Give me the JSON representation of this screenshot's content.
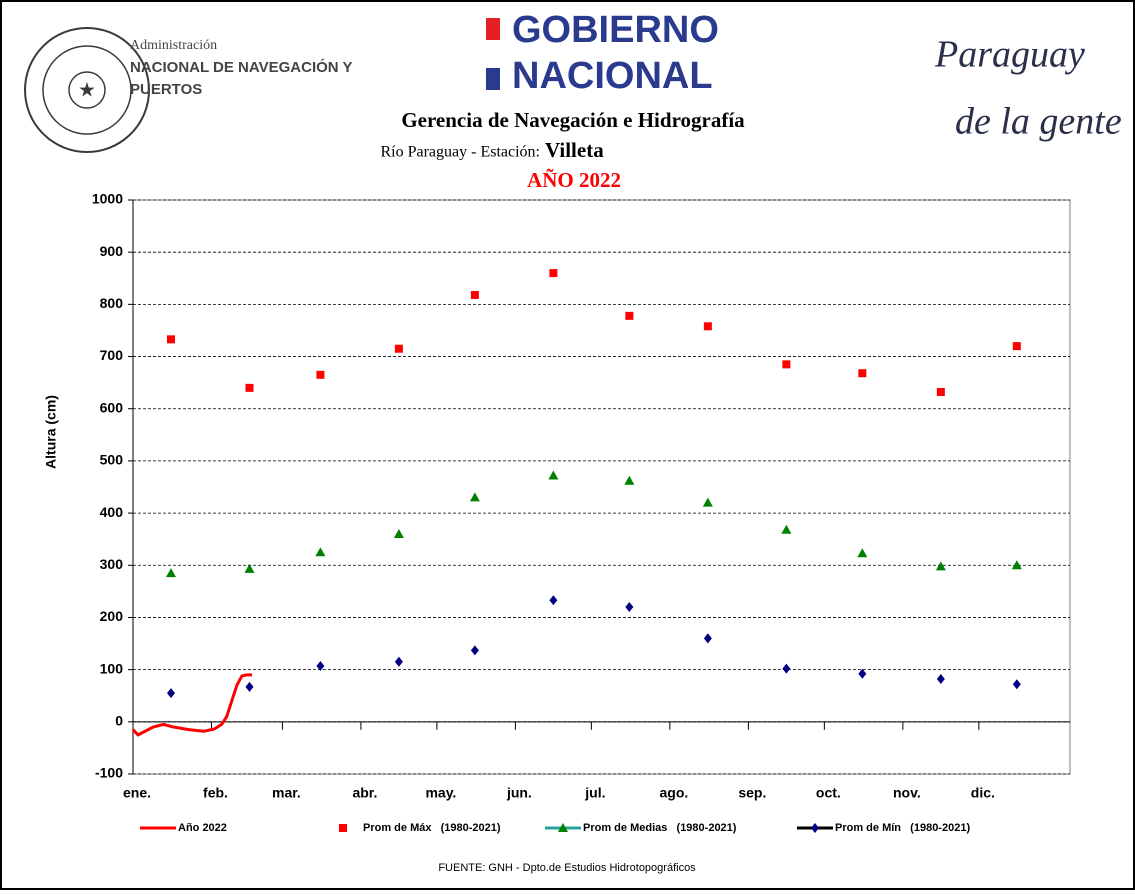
{
  "header": {
    "org_line1": "Administración",
    "org_line2": "NACIONAL DE NAVEGACIÓN Y",
    "org_line3": "PUERTOS",
    "gov_line1": "GOBIERNO",
    "gov_line2": "NACIONAL",
    "slogan_line1": "Paraguay",
    "slogan_line2": "de la gente",
    "department": "Gerencia de Navegación e Hidrografía",
    "station_prefix": "Río Paraguay -  Estación:",
    "station": "Villeta"
  },
  "chart_data": {
    "type": "scatter",
    "title": "AÑO 2022",
    "y_label": "Altura (cm)",
    "source": "FUENTE: GNH - Dpto.de Estudios Hidrotopográficos",
    "xlim": [
      0,
      370
    ],
    "ylim": [
      -100,
      1000
    ],
    "yticks": [
      -100,
      0,
      100,
      200,
      300,
      400,
      500,
      600,
      700,
      800,
      900,
      1000
    ],
    "xticks": [
      {
        "value": 0,
        "label": "ene."
      },
      {
        "value": 31,
        "label": "feb."
      },
      {
        "value": 59,
        "label": "mar."
      },
      {
        "value": 90,
        "label": "abr."
      },
      {
        "value": 120,
        "label": "may."
      },
      {
        "value": 151,
        "label": "jun."
      },
      {
        "value": 181,
        "label": "jul."
      },
      {
        "value": 212,
        "label": "ago."
      },
      {
        "value": 243,
        "label": "sep."
      },
      {
        "value": 273,
        "label": "oct."
      },
      {
        "value": 304,
        "label": "nov."
      },
      {
        "value": 334,
        "label": "dic."
      }
    ],
    "grid": true,
    "series": [
      {
        "name": "Año 2022",
        "color": "#ff0000",
        "marker": "line",
        "x": [
          0,
          2,
          4,
          8,
          12,
          16,
          22,
          28,
          32,
          35,
          37,
          39,
          41,
          43,
          45,
          47
        ],
        "values": [
          -15,
          -25,
          -20,
          -10,
          -5,
          -10,
          -15,
          -18,
          -14,
          -5,
          10,
          40,
          70,
          88,
          90,
          90
        ]
      },
      {
        "name": "Prom de Máx   (1980-2021)",
        "color": "#ff0000",
        "marker": "square",
        "x": [
          15,
          46,
          74,
          105,
          135,
          166,
          196,
          227,
          258,
          288,
          319,
          349
        ],
        "values": [
          733,
          640,
          665,
          715,
          818,
          860,
          778,
          758,
          685,
          668,
          632,
          720
        ]
      },
      {
        "name": "Prom de Medias   (1980-2021)",
        "color": "#008000",
        "marker": "triangle",
        "x": [
          15,
          46,
          74,
          105,
          135,
          166,
          196,
          227,
          258,
          288,
          319,
          349
        ],
        "values": [
          285,
          293,
          325,
          360,
          430,
          472,
          462,
          420,
          368,
          323,
          298,
          300
        ]
      },
      {
        "name": "Prom de Mín   (1980-2021)",
        "color": "#000080",
        "marker": "diamond",
        "x": [
          15,
          46,
          74,
          105,
          135,
          166,
          196,
          227,
          258,
          288,
          319,
          349
        ],
        "values": [
          55,
          67,
          107,
          115,
          137,
          233,
          220,
          160,
          102,
          92,
          82,
          72
        ]
      }
    ]
  }
}
